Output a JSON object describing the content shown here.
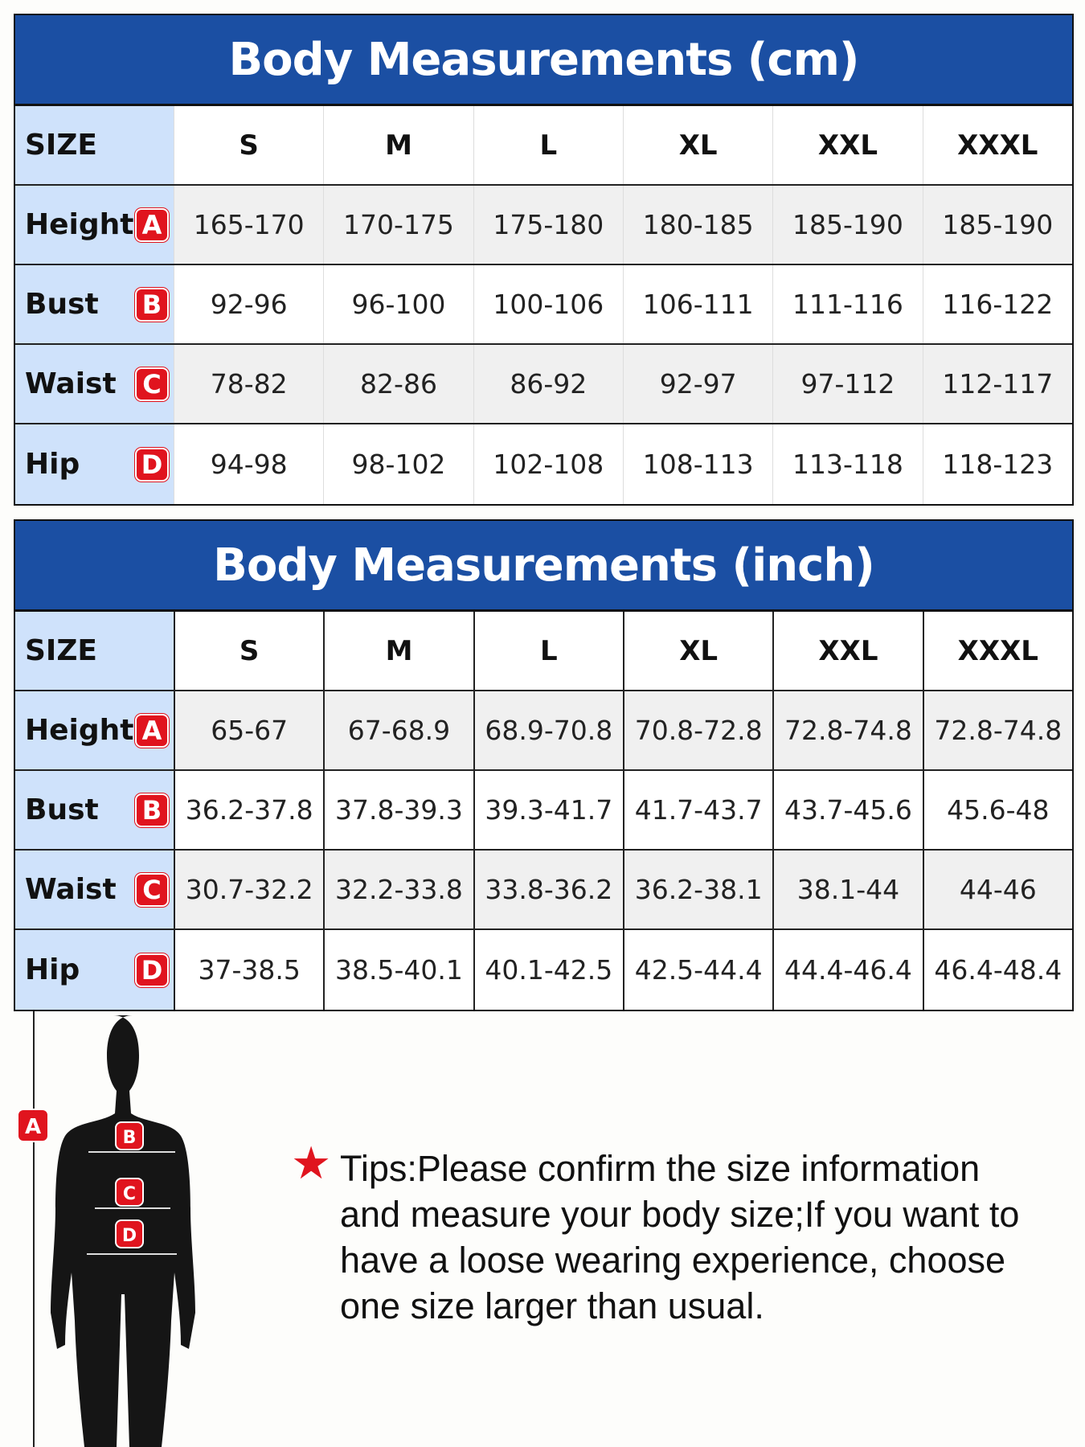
{
  "tables": [
    {
      "title": "Body Measurements (cm)",
      "header_label": "SIZE",
      "sizes": [
        "S",
        "M",
        "L",
        "XL",
        "XXL",
        "XXXL"
      ],
      "rows": [
        {
          "label": "Height",
          "badge": "A",
          "values": [
            "165-170",
            "170-175",
            "175-180",
            "180-185",
            "185-190",
            "185-190"
          ]
        },
        {
          "label": "Bust",
          "badge": "B",
          "values": [
            "92-96",
            "96-100",
            "100-106",
            "106-111",
            "111-116",
            "116-122"
          ]
        },
        {
          "label": "Waist",
          "badge": "C",
          "values": [
            "78-82",
            "82-86",
            "86-92",
            "92-97",
            "97-112",
            "112-117"
          ]
        },
        {
          "label": "Hip",
          "badge": "D",
          "values": [
            "94-98",
            "98-102",
            "102-108",
            "108-113",
            "113-118",
            "118-123"
          ]
        }
      ]
    },
    {
      "title": "Body Measurements (inch)",
      "header_label": "SIZE",
      "sizes": [
        "S",
        "M",
        "L",
        "XL",
        "XXL",
        "XXXL"
      ],
      "rows": [
        {
          "label": "Height",
          "badge": "A",
          "values": [
            "65-67",
            "67-68.9",
            "68.9-70.8",
            "70.8-72.8",
            "72.8-74.8",
            "72.8-74.8"
          ]
        },
        {
          "label": "Bust",
          "badge": "B",
          "values": [
            "36.2-37.8",
            "37.8-39.3",
            "39.3-41.7",
            "41.7-43.7",
            "43.7-45.6",
            "45.6-48"
          ]
        },
        {
          "label": "Waist",
          "badge": "C",
          "values": [
            "30.7-32.2",
            "32.2-33.8",
            "33.8-36.2",
            "36.2-38.1",
            "38.1-44",
            "44-46"
          ]
        },
        {
          "label": "Hip",
          "badge": "D",
          "values": [
            "37-38.5",
            "38.5-40.1",
            "40.1-42.5",
            "42.5-44.4",
            "44.4-46.4",
            "46.4-48.4"
          ]
        }
      ]
    }
  ],
  "figure": {
    "badges": [
      "A",
      "B",
      "C",
      "D"
    ]
  },
  "tips": {
    "icon": "star-icon",
    "text": "Tips:Please confirm the size information and measure your body size;If you want to have a loose wearing experience, choose one size larger than usual."
  },
  "colors": {
    "header": "#1b4fa3",
    "label_col": "#cfe2fb",
    "badge": "#e0141e"
  }
}
